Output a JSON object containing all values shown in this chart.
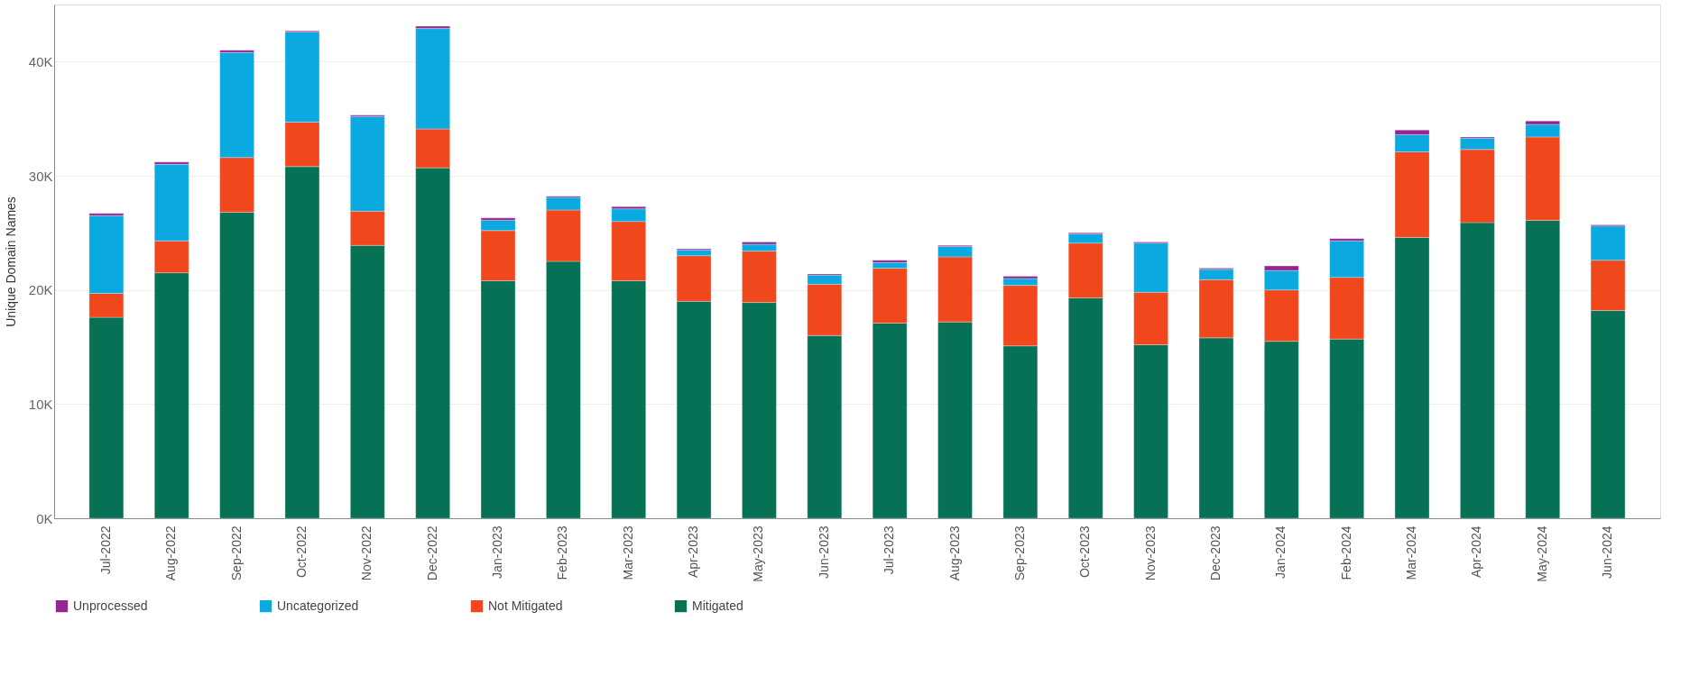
{
  "chart_data": {
    "type": "bar",
    "stacked": true,
    "ylabel": "Unique Domain Names",
    "categories": [
      "Jul-2022",
      "Aug-2022",
      "Sep-2022",
      "Oct-2022",
      "Nov-2022",
      "Dec-2022",
      "Jan-2023",
      "Feb-2023",
      "Mar-2023",
      "Apr-2023",
      "May-2023",
      "Jun-2023",
      "Jul-2023",
      "Aug-2023",
      "Sep-2023",
      "Oct-2023",
      "Nov-2023",
      "Dec-2023",
      "Jan-2024",
      "Feb-2024",
      "Mar-2024",
      "Apr-2024",
      "May-2024",
      "Jun-2024"
    ],
    "series": [
      {
        "name": "Mitigated",
        "color": "#077155",
        "values": [
          17600,
          21500,
          26800,
          30800,
          23900,
          30700,
          20800,
          22500,
          20800,
          19000,
          18900,
          16000,
          17100,
          17200,
          15100,
          19300,
          15200,
          15800,
          15500,
          15700,
          24600,
          25900,
          26100,
          18200
        ]
      },
      {
        "name": "Not Mitigated",
        "color": "#f0471d",
        "values": [
          2100,
          2800,
          4800,
          3900,
          3000,
          3400,
          4400,
          4500,
          5200,
          4000,
          4500,
          4500,
          4800,
          5700,
          5300,
          4800,
          4600,
          5100,
          4500,
          5400,
          7500,
          6400,
          7300,
          4400
        ]
      },
      {
        "name": "Uncategorized",
        "color": "#0aa9e0",
        "values": [
          6800,
          6700,
          9200,
          7900,
          8300,
          8800,
          900,
          1100,
          1100,
          500,
          600,
          800,
          500,
          900,
          600,
          800,
          4300,
          900,
          1700,
          3200,
          1500,
          1000,
          1100,
          3000
        ]
      },
      {
        "name": "Unprocessed",
        "color": "#93278f",
        "values": [
          200,
          200,
          200,
          100,
          100,
          200,
          200,
          100,
          200,
          100,
          200,
          100,
          200,
          100,
          200,
          100,
          100,
          100,
          400,
          200,
          400,
          100,
          300,
          100
        ]
      }
    ],
    "ylim": [
      0,
      45000
    ],
    "yticks": [
      {
        "value": 0,
        "label": "0K"
      },
      {
        "value": 10000,
        "label": "10K"
      },
      {
        "value": 20000,
        "label": "20K"
      },
      {
        "value": 30000,
        "label": "30K"
      },
      {
        "value": 40000,
        "label": "40K"
      }
    ],
    "grid": "y",
    "legend": "bottom"
  }
}
